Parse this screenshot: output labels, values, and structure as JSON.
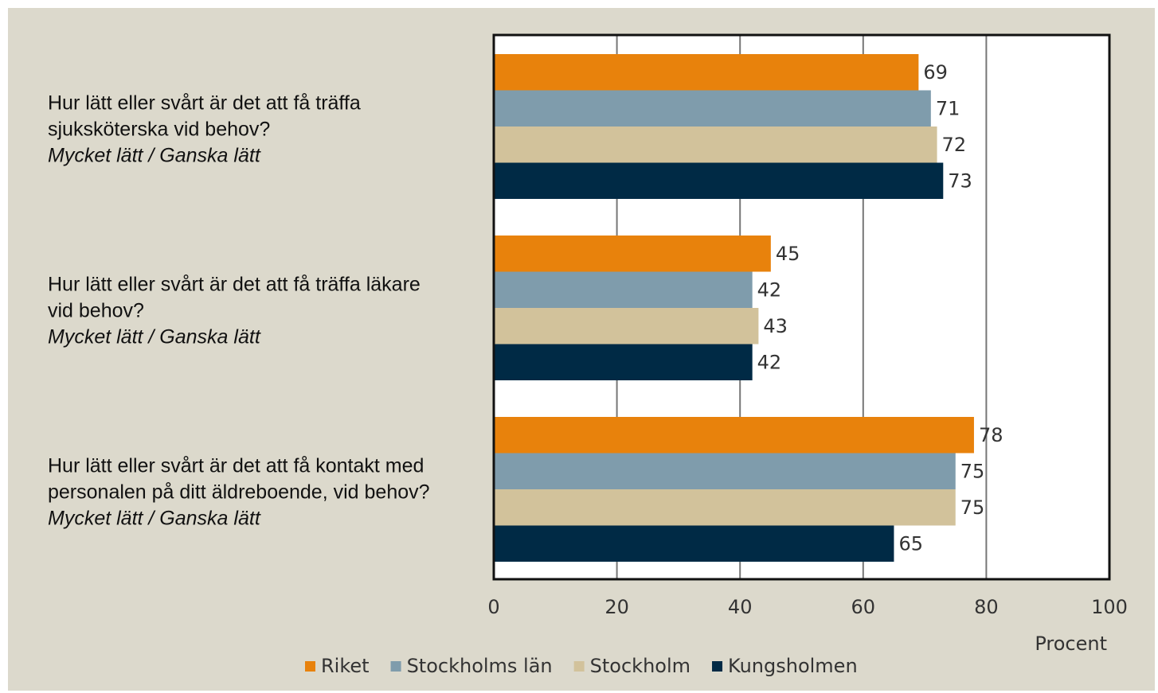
{
  "chart_data": {
    "type": "hbar",
    "categories": [
      "Hur lätt eller svårt är det att få träffa sjuksköterska vid behov?",
      "Hur lätt eller svårt är det att få träffa läkare vid behov?",
      "Hur lätt eller svårt är det att få kontakt med personalen på ditt äldreboende, vid behov?"
    ],
    "category_subtitles": [
      "Mycket lätt / Ganska lätt",
      "Mycket lätt / Ganska lätt",
      "Mycket lätt / Ganska lätt"
    ],
    "series": [
      {
        "name": "Riket",
        "color": "#e8820c",
        "values": [
          69,
          45,
          78
        ]
      },
      {
        "name": "Stockholms län",
        "color": "#7f9cac",
        "values": [
          71,
          42,
          75
        ]
      },
      {
        "name": "Stockholm",
        "color": "#d2c29b",
        "values": [
          72,
          43,
          75
        ]
      },
      {
        "name": "Kungsholmen",
        "color": "#002a45",
        "values": [
          73,
          42,
          65
        ]
      }
    ],
    "xlabel": "Procent",
    "xlim": [
      0,
      100
    ],
    "xticks": [
      0,
      20,
      40,
      60,
      80,
      100
    ],
    "grid": true,
    "legend": "bottom"
  }
}
